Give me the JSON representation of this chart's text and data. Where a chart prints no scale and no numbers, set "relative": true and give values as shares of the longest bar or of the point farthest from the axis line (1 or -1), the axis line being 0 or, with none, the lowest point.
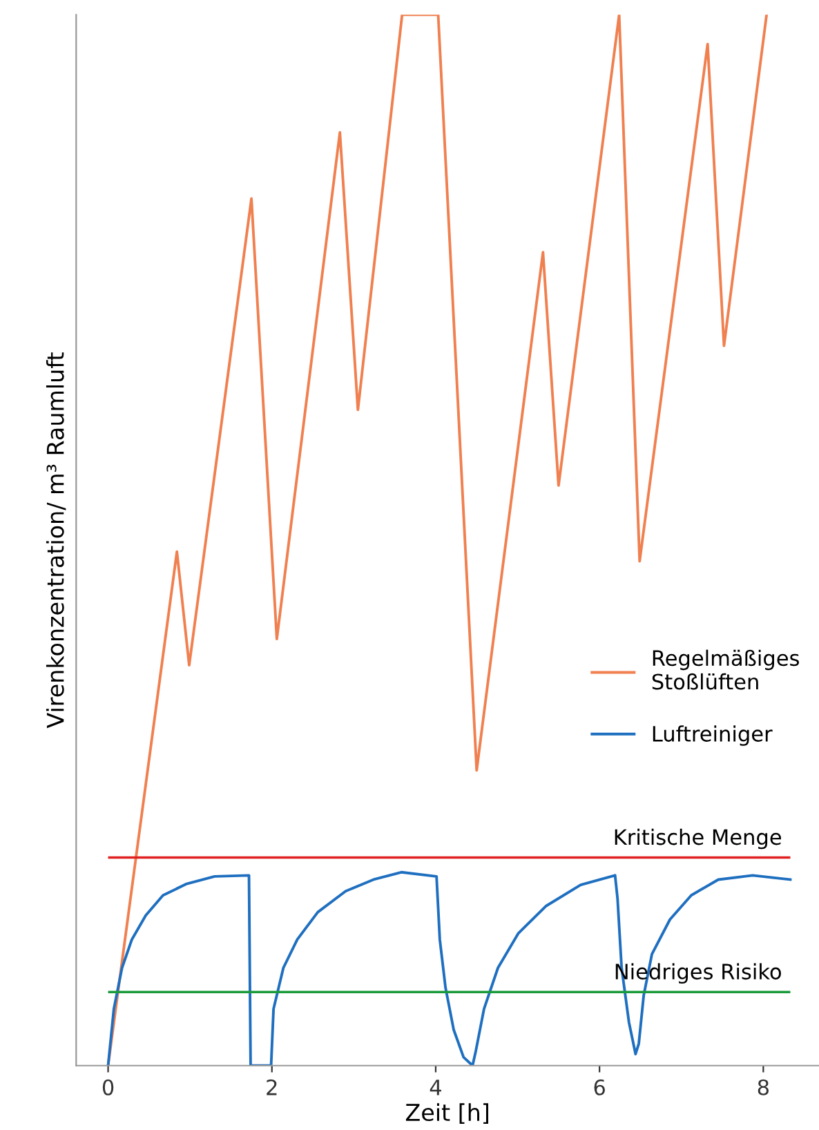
{
  "chart_data": {
    "type": "line",
    "relative": true,
    "xlabel": "Zeit [h]",
    "ylabel": "Virenkonzentration/ m³ Raumluft",
    "xlim": [
      -0.39,
      8.68
    ],
    "xticks": [
      0,
      2,
      4,
      6,
      8
    ],
    "legend": "right",
    "grid": false,
    "series": [
      {
        "name": "Regelmäßiges\nStoßlüften",
        "color": "#f08050",
        "x": [
          0,
          0.84,
          0.99,
          1.75,
          2.06,
          2.83,
          3.05,
          3.59,
          4.03,
          4.5,
          5.31,
          5.5,
          6.24,
          6.49,
          7.32,
          7.52,
          8.04
        ],
        "values": [
          0,
          0.489,
          0.381,
          0.825,
          0.406,
          0.888,
          0.624,
          1,
          1,
          0.281,
          0.774,
          0.552,
          1,
          0.48,
          0.972,
          0.685,
          1
        ]
      },
      {
        "name": "Luftreiniger",
        "color": "#1f6fc0",
        "x": [
          0,
          0.07,
          0.17,
          0.29,
          0.46,
          0.67,
          0.96,
          1.3,
          1.72,
          1.74,
          1.99,
          2.02,
          2.14,
          2.31,
          2.56,
          2.9,
          3.24,
          3.58,
          4.01,
          4.05,
          4.12,
          4.22,
          4.34,
          4.45,
          4.49,
          4.59,
          4.76,
          5.01,
          5.35,
          5.77,
          6.19,
          6.22,
          6.27,
          6.36,
          6.44,
          6.48,
          6.54,
          6.64,
          6.86,
          7.12,
          7.45,
          7.87,
          8.33
        ],
        "values": [
          0,
          0.054,
          0.093,
          0.12,
          0.143,
          0.162,
          0.173,
          0.18,
          0.181,
          0,
          0,
          0.054,
          0.093,
          0.12,
          0.146,
          0.166,
          0.177,
          0.184,
          0.18,
          0.12,
          0.074,
          0.034,
          0.008,
          0,
          0.014,
          0.054,
          0.093,
          0.126,
          0.152,
          0.172,
          0.181,
          0.159,
          0.093,
          0.041,
          0.011,
          0.021,
          0.067,
          0.106,
          0.139,
          0.162,
          0.177,
          0.181,
          0.177
        ]
      }
    ],
    "ref_lines": [
      {
        "axis": "y",
        "value": 0.198,
        "label": "Kritische Menge",
        "color": "#e02020"
      },
      {
        "axis": "y",
        "value": 0.07,
        "label": "Niedriges Risiko",
        "color": "#1a9a3a"
      }
    ]
  }
}
